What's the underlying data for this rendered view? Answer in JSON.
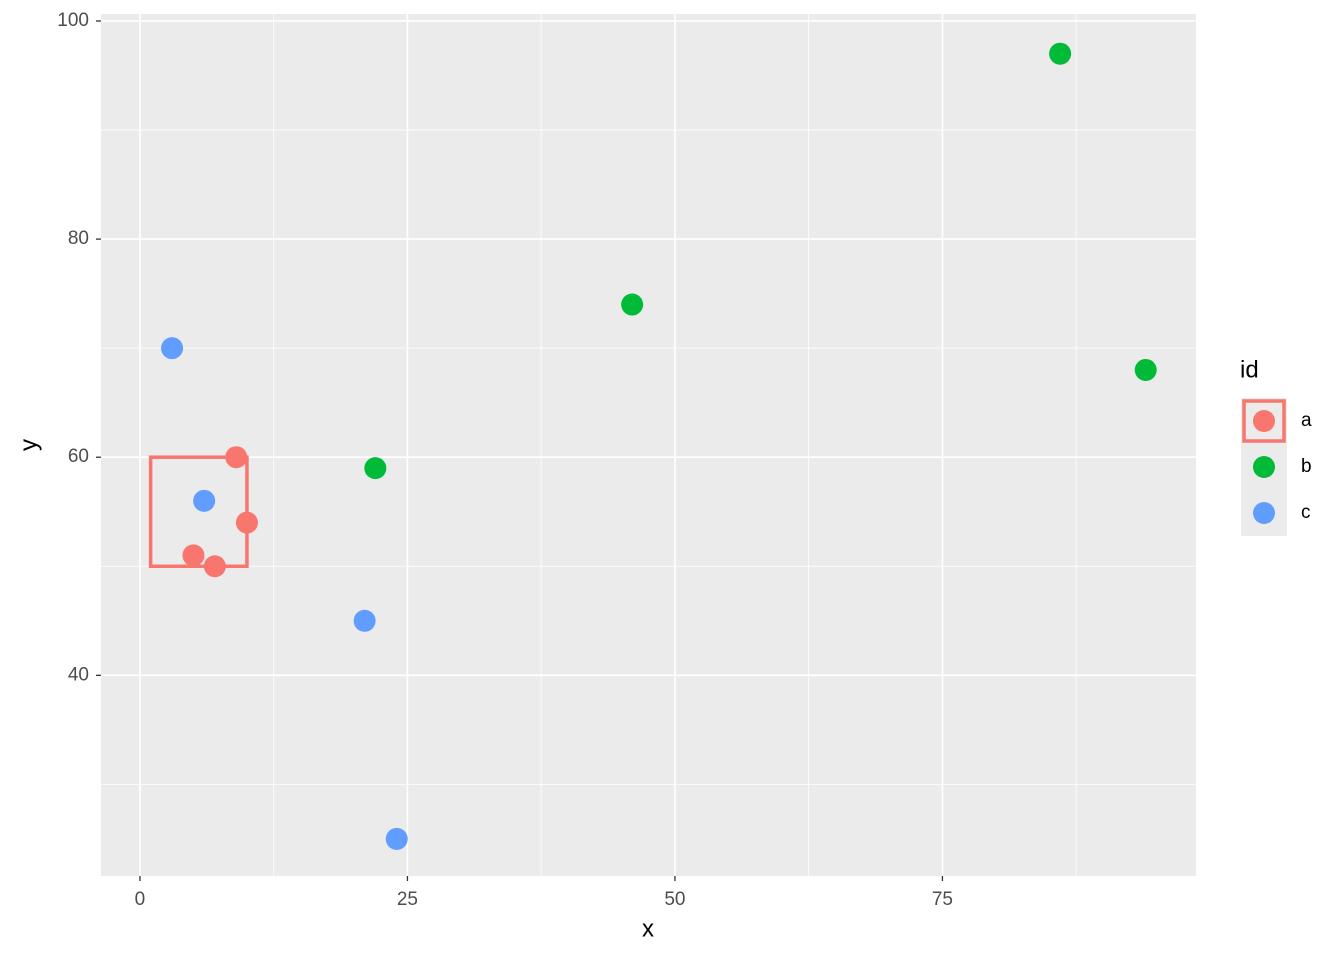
{
  "chart_data": {
    "type": "scatter",
    "x_label": "x",
    "y_label": "y",
    "legend_title": "id",
    "xlim": [
      -3.64,
      98.7
    ],
    "ylim": [
      21.6,
      100.64
    ],
    "xticks": [
      0,
      25,
      50,
      75
    ],
    "yticks": [
      40,
      60,
      80,
      100
    ],
    "xminor": [
      12.5,
      37.5,
      62.5,
      87.5
    ],
    "yminor": [
      30,
      50,
      70,
      90
    ],
    "grid": true,
    "legend": "right",
    "series": [
      {
        "name": "a",
        "color": "#F8766D",
        "x": [
          9,
          5,
          7,
          10
        ],
        "values": [
          60,
          51,
          50,
          54
        ]
      },
      {
        "name": "b",
        "color": "#00BA38",
        "x": [
          22,
          46,
          86,
          94
        ],
        "values": [
          59,
          74,
          97,
          68
        ]
      },
      {
        "name": "c",
        "color": "#619CFF",
        "x": [
          3,
          6,
          21,
          24
        ],
        "values": [
          70,
          56,
          45,
          25
        ]
      }
    ],
    "highlight_rect": {
      "series": 0,
      "xmin": 1,
      "xmax": 10,
      "ymin": 50,
      "ymax": 60
    }
  }
}
